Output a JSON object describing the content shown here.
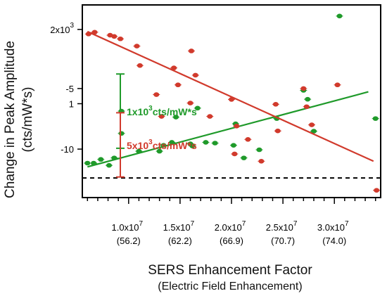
{
  "chart_data": {
    "type": "scatter",
    "title": "",
    "xlabel": "SERS Enhancement Factor",
    "xlabel_sub": "(Electric Field Enhancement)",
    "ylabel": "Change in Peak Amplitude",
    "ylabel_sub": "(cts/mW*s)",
    "xlim": [
      5500000,
      34500000
    ],
    "x_ticks": [
      {
        "value": 10000000,
        "label": "1.0x10",
        "exp": "7",
        "sub": "(56.2)"
      },
      {
        "value": 15000000,
        "label": "1.5x10",
        "exp": "7",
        "sub": "(62.2)"
      },
      {
        "value": 20000000,
        "label": "2.0x10",
        "exp": "7",
        "sub": "(66.9)"
      },
      {
        "value": 25000000,
        "label": "2.5x10",
        "exp": "7",
        "sub": "(70.7)"
      },
      {
        "value": 30000000,
        "label": "3.0x10",
        "exp": "7",
        "sub": "(74.0)"
      }
    ],
    "axes": [
      {
        "id": "upper",
        "ylim": [
          -0.33,
          2.33
        ],
        "ticks": [
          {
            "value": 1,
            "label": "1"
          },
          {
            "value": 2,
            "label": "2x10",
            "exp": "3"
          }
        ],
        "scale_bar": {
          "value": 1,
          "label": "1x10",
          "exp": "3",
          "unit": "cts/mW*s"
        }
      },
      {
        "id": "lower",
        "ylim": [
          -14.0,
          1.9
        ],
        "ticks": [
          {
            "value": -5,
            "label": "-5"
          },
          {
            "value": -10,
            "label": "-10"
          }
        ],
        "scale_bar": {
          "value": 5,
          "label": "5x10",
          "exp": "3",
          "unit": "cts/mW*s"
        }
      }
    ],
    "zero_line": {
      "value": 0,
      "style": "dashed"
    },
    "series": [
      {
        "axis": "upper",
        "color": "#1f9a2a",
        "points": [
          {
            "x": 6000000,
            "y": 0.2
          },
          {
            "x": 6600000,
            "y": 0.2
          },
          {
            "x": 7300000,
            "y": 0.25
          },
          {
            "x": 8100000,
            "y": 0.17
          },
          {
            "x": 8600000,
            "y": 0.27
          },
          {
            "x": 9300000,
            "y": 0.6
          },
          {
            "x": 9300000,
            "y": 0.9
          },
          {
            "x": 11000000,
            "y": 0.36
          },
          {
            "x": 13000000,
            "y": 0.36
          },
          {
            "x": 13400000,
            "y": 0.44
          },
          {
            "x": 14200000,
            "y": 0.48
          },
          {
            "x": 14600000,
            "y": 0.82
          },
          {
            "x": 16000000,
            "y": 0.46
          },
          {
            "x": 16200000,
            "y": 0.43
          },
          {
            "x": 16700000,
            "y": 0.94
          },
          {
            "x": 17500000,
            "y": 0.48
          },
          {
            "x": 18400000,
            "y": 0.47
          },
          {
            "x": 20200000,
            "y": 0.44
          },
          {
            "x": 20400000,
            "y": 0.73
          },
          {
            "x": 21200000,
            "y": 0.27
          },
          {
            "x": 22700000,
            "y": 0.38
          },
          {
            "x": 24400000,
            "y": 0.8
          },
          {
            "x": 27000000,
            "y": 1.18
          },
          {
            "x": 27400000,
            "y": 1.06
          },
          {
            "x": 28000000,
            "y": 0.63
          },
          {
            "x": 30500000,
            "y": 2.18
          },
          {
            "x": 34000000,
            "y": 0.8
          }
        ],
        "fit": {
          "x": [
            6000000,
            33300000
          ],
          "y": [
            0.15,
            1.16
          ]
        }
      },
      {
        "axis": "lower",
        "color": "#d13a2c",
        "points": [
          {
            "x": 6100000,
            "y": -0.5
          },
          {
            "x": 6700000,
            "y": -0.35
          },
          {
            "x": 8200000,
            "y": -0.6
          },
          {
            "x": 8600000,
            "y": -0.7
          },
          {
            "x": 9200000,
            "y": -0.9
          },
          {
            "x": 10800000,
            "y": -1.5
          },
          {
            "x": 11100000,
            "y": -3.1
          },
          {
            "x": 12700000,
            "y": -5.5
          },
          {
            "x": 13200000,
            "y": -7.3
          },
          {
            "x": 14400000,
            "y": -3.3
          },
          {
            "x": 14800000,
            "y": -4.7
          },
          {
            "x": 16000000,
            "y": -6.2
          },
          {
            "x": 16100000,
            "y": -1.9
          },
          {
            "x": 16500000,
            "y": -3.9
          },
          {
            "x": 17900000,
            "y": -7.3
          },
          {
            "x": 20000000,
            "y": -5.9
          },
          {
            "x": 20300000,
            "y": -10.4
          },
          {
            "x": 20500000,
            "y": -8.1
          },
          {
            "x": 21600000,
            "y": -9.2
          },
          {
            "x": 22900000,
            "y": -11.0
          },
          {
            "x": 24300000,
            "y": -6.3
          },
          {
            "x": 24500000,
            "y": -8.5
          },
          {
            "x": 27000000,
            "y": -5.0
          },
          {
            "x": 27300000,
            "y": -6.5
          },
          {
            "x": 27800000,
            "y": -8.0
          },
          {
            "x": 30300000,
            "y": -4.7
          },
          {
            "x": 34100000,
            "y": -13.4
          }
        ],
        "fit": {
          "x": [
            6000000,
            33800000
          ],
          "y": [
            -0.3,
            -11.0
          ]
        }
      }
    ]
  }
}
